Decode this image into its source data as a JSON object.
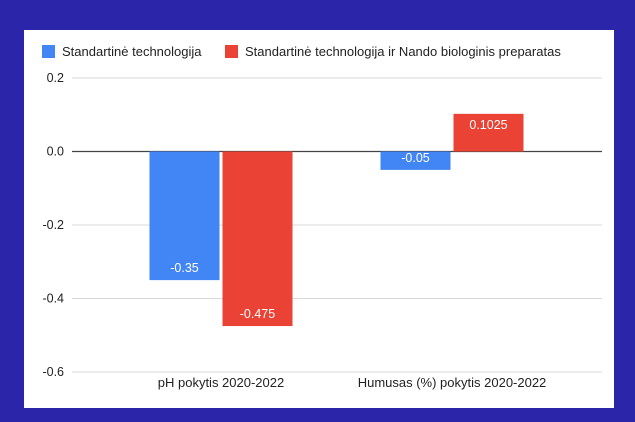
{
  "chart_data": {
    "type": "bar",
    "categories": [
      "pH pokytis 2020-2022",
      "Humusas (%) pokytis 2020-2022"
    ],
    "series": [
      {
        "name": "Standartinė technologija",
        "values": [
          -0.35,
          -0.05
        ],
        "color": "#4285f4"
      },
      {
        "name": "Standartinė technologija ir Nando biologinis preparatas",
        "values": [
          -0.475,
          0.1025
        ],
        "color": "#ea4335"
      }
    ],
    "ylim": [
      -0.6,
      0.2
    ],
    "yticks": [
      0.2,
      0.0,
      -0.2,
      -0.4,
      -0.6
    ],
    "ytick_labels": [
      "0.2",
      "0.0",
      "-0.2",
      "-0.4",
      "-0.6"
    ],
    "data_labels": [
      [
        "-0.35",
        "-0.05"
      ],
      [
        "-0.475",
        "0.1025"
      ]
    ],
    "grid": true,
    "legend_position": "top-left"
  }
}
